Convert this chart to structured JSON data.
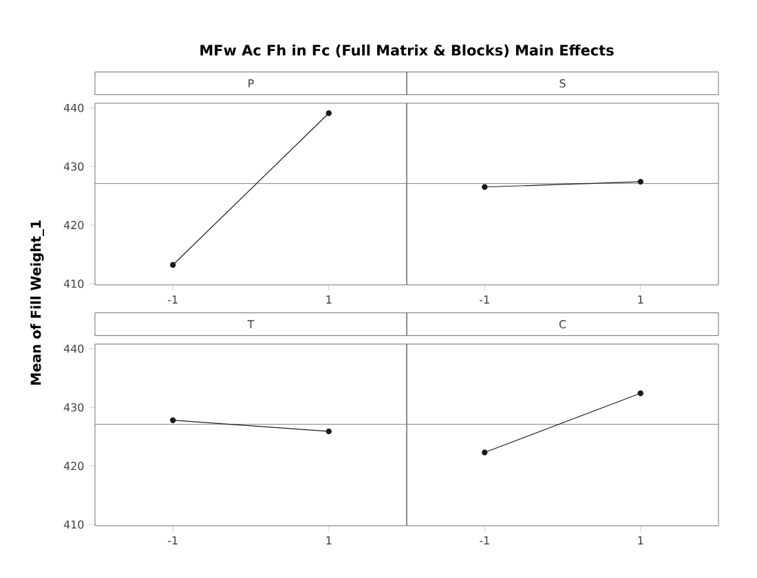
{
  "chart_data": [
    {
      "type": "line",
      "title": "P",
      "annotations": [
        "MFw Ac Fh in Fc (Full Matrix & Blocks) Main Effects"
      ],
      "ylabel": "Mean of Fill Weight_1",
      "categories": [
        "-1",
        "1"
      ],
      "ylim": [
        409.8,
        440.8
      ],
      "yticks": [
        410,
        420,
        430,
        440
      ],
      "marker": "circle",
      "line_style": "solid",
      "series": [
        {
          "color": "#1a1a1a",
          "values": [
            413.2,
            439.1
          ]
        }
      ],
      "ref_lines": [
        {
          "axis": "y",
          "value": 427.1,
          "color": "#808080"
        }
      ]
    },
    {
      "type": "line",
      "title": "S",
      "categories": [
        "-1",
        "1"
      ],
      "ylim": [
        409.8,
        440.8
      ],
      "yticks": [
        410,
        420,
        430,
        440
      ],
      "tick_labels": "x",
      "marker": "circle",
      "line_style": "solid",
      "series": [
        {
          "color": "#1a1a1a",
          "values": [
            426.5,
            427.4
          ]
        }
      ],
      "ref_lines": [
        {
          "axis": "y",
          "value": 427.1,
          "color": "#808080"
        }
      ]
    },
    {
      "type": "line",
      "title": "T",
      "categories": [
        "-1",
        "1"
      ],
      "ylim": [
        409.8,
        440.8
      ],
      "yticks": [
        410,
        420,
        430,
        440
      ],
      "marker": "circle",
      "line_style": "solid",
      "series": [
        {
          "color": "#1a1a1a",
          "values": [
            427.8,
            425.9
          ]
        }
      ],
      "ref_lines": [
        {
          "axis": "y",
          "value": 427.1,
          "color": "#808080"
        }
      ]
    },
    {
      "type": "line",
      "title": "C",
      "categories": [
        "-1",
        "1"
      ],
      "ylim": [
        409.8,
        440.8
      ],
      "yticks": [
        410,
        420,
        430,
        440
      ],
      "tick_labels": "x",
      "marker": "circle",
      "line_style": "solid",
      "series": [
        {
          "color": "#1a1a1a",
          "values": [
            422.3,
            432.4
          ]
        }
      ],
      "ref_lines": [
        {
          "axis": "y",
          "value": 427.1,
          "color": "#808080"
        }
      ]
    }
  ]
}
